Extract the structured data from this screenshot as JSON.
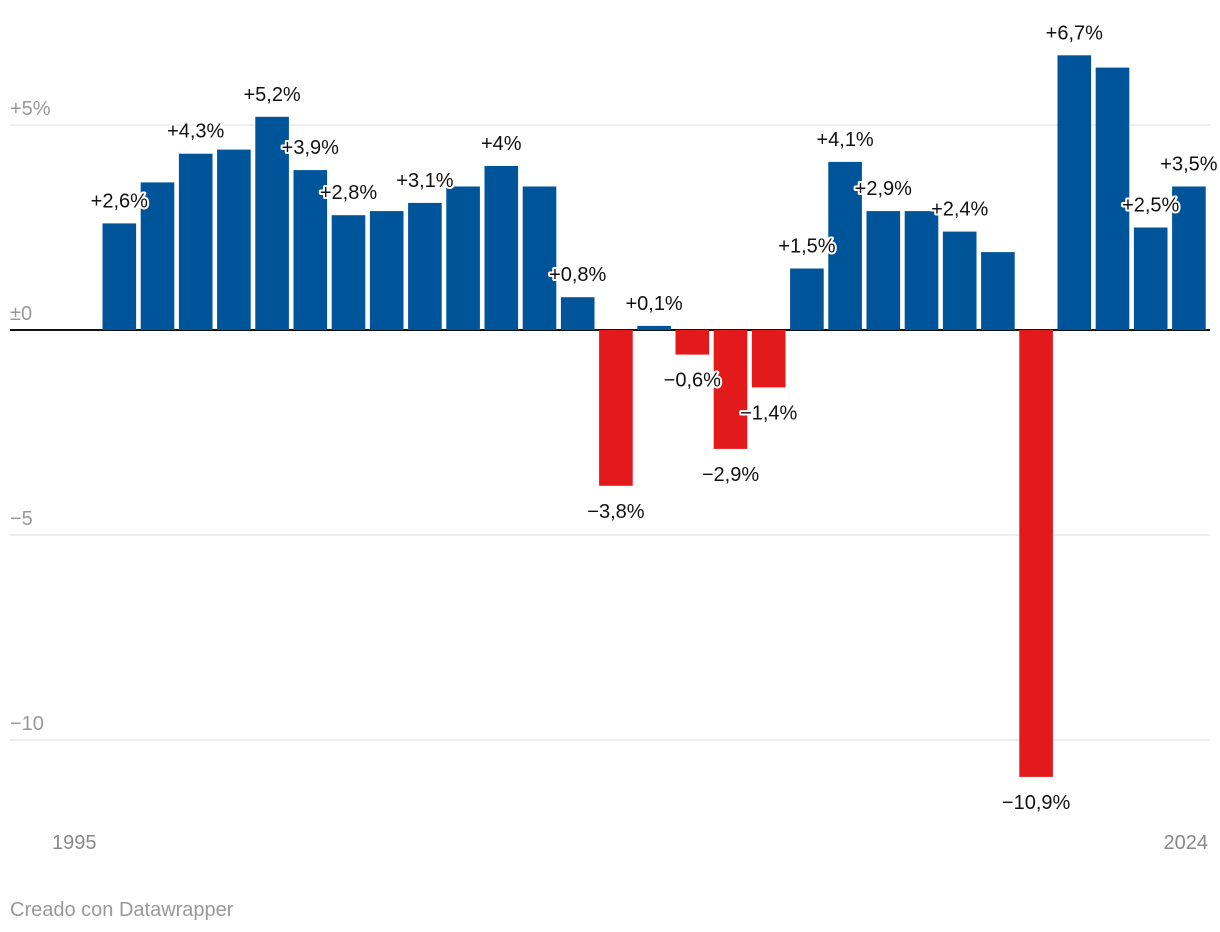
{
  "chart_data": {
    "type": "bar",
    "categories": [
      "1995",
      null,
      null,
      null,
      null,
      null,
      null,
      null,
      null,
      null,
      null,
      null,
      null,
      null,
      null,
      null,
      null,
      null,
      null,
      null,
      null,
      null,
      null,
      null,
      null,
      null,
      null,
      null,
      null,
      "2024"
    ],
    "values": [
      null,
      2.6,
      3.6,
      4.3,
      4.4,
      5.2,
      3.9,
      2.8,
      2.9,
      3.1,
      3.5,
      4.0,
      3.5,
      0.8,
      -3.8,
      0.1,
      -0.6,
      -2.9,
      -1.4,
      1.5,
      4.1,
      2.9,
      2.9,
      2.4,
      1.9,
      -10.9,
      6.7,
      6.4,
      2.5,
      3.5
    ],
    "value_labels": [
      null,
      "+2,6%",
      null,
      "+4,3%",
      null,
      "+5,2%",
      "+3,9%",
      "+2,8%",
      null,
      "+3,1%",
      null,
      "+4%",
      null,
      "+0,8%",
      "−3,8%",
      "+0,1%",
      "−0,6%",
      "−2,9%",
      "−1,4%",
      "+1,5%",
      "+4,1%",
      "+2,9%",
      null,
      "+2,4%",
      null,
      "−10,9%",
      "+6,7%",
      null,
      "+2,5%",
      "+3,5%"
    ],
    "positive_color": "#00549a",
    "negative_color": "#e31a1c",
    "ylim": [
      -11,
      8
    ],
    "yticks": [
      {
        "value": 5,
        "label": "+5%"
      },
      {
        "value": 0,
        "label": "±0"
      },
      {
        "value": -5,
        "label": "−5"
      },
      {
        "value": -10,
        "label": "−10"
      }
    ],
    "grid": true,
    "footer": "Creado con Datawrapper"
  }
}
